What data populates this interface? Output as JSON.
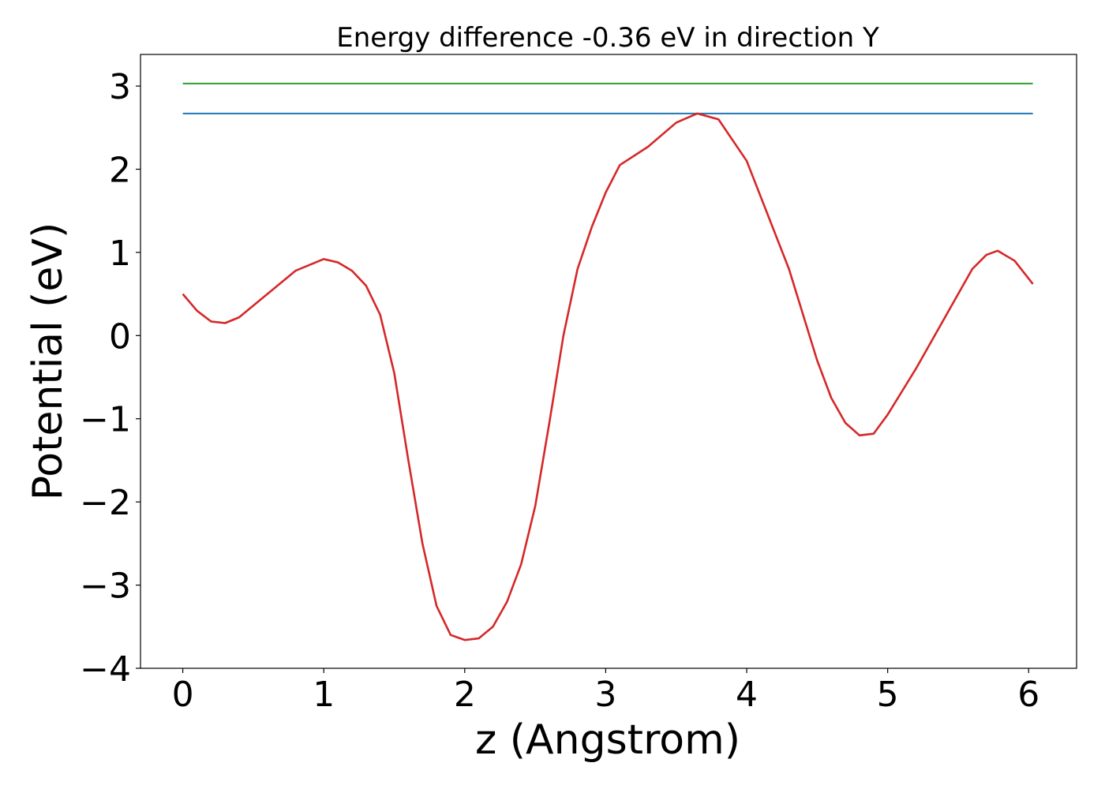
{
  "chart_data": {
    "type": "line",
    "title": "Energy difference -0.36 eV in direction Y",
    "xlabel": "z (Angstrom)",
    "ylabel": "Potential (eV)",
    "xlim": [
      -0.3,
      6.34
    ],
    "ylim": [
      -4.0,
      3.38
    ],
    "xticks": [
      0,
      1,
      2,
      3,
      4,
      5,
      6
    ],
    "yticks": [
      -4,
      -3,
      -2,
      -1,
      0,
      1,
      2,
      3
    ],
    "xtick_labels": [
      "0",
      "1",
      "2",
      "3",
      "4",
      "5",
      "6"
    ],
    "ytick_labels": [
      "−4",
      "−3",
      "−2",
      "−1",
      "0",
      "1",
      "2",
      "3"
    ],
    "grid": false,
    "series": [
      {
        "color": "#2ca02c",
        "x": [
          0.0,
          6.03
        ],
        "y": [
          3.03,
          3.03
        ]
      },
      {
        "color": "#1f77b4",
        "x": [
          0.0,
          6.03
        ],
        "y": [
          2.67,
          2.67
        ]
      },
      {
        "color": "#d62728",
        "x": [
          0.0,
          0.1,
          0.2,
          0.3,
          0.4,
          0.6,
          0.8,
          1.0,
          1.1,
          1.2,
          1.3,
          1.4,
          1.5,
          1.6,
          1.7,
          1.8,
          1.9,
          2.0,
          2.1,
          2.2,
          2.3,
          2.4,
          2.5,
          2.6,
          2.7,
          2.8,
          2.9,
          3.0,
          3.1,
          3.3,
          3.5,
          3.65,
          3.8,
          4.0,
          4.3,
          4.5,
          4.6,
          4.7,
          4.8,
          4.9,
          5.0,
          5.2,
          5.4,
          5.6,
          5.7,
          5.78,
          5.9,
          6.03
        ],
        "y": [
          0.5,
          0.3,
          0.17,
          0.15,
          0.22,
          0.5,
          0.78,
          0.92,
          0.88,
          0.78,
          0.6,
          0.25,
          -0.45,
          -1.5,
          -2.5,
          -3.25,
          -3.6,
          -3.66,
          -3.64,
          -3.5,
          -3.2,
          -2.75,
          -2.05,
          -1.05,
          0.0,
          0.8,
          1.3,
          1.72,
          2.05,
          2.27,
          2.56,
          2.67,
          2.6,
          2.1,
          0.8,
          -0.3,
          -0.75,
          -1.05,
          -1.2,
          -1.18,
          -0.95,
          -0.4,
          0.2,
          0.8,
          0.97,
          1.02,
          0.9,
          0.62
        ]
      }
    ]
  }
}
